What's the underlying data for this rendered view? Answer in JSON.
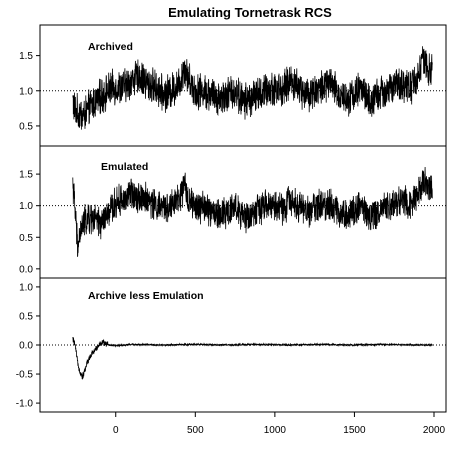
{
  "chart_data": {
    "title": "Emulating Tornetrask RCS",
    "type": "line",
    "x": {
      "range": [
        -300,
        2000
      ],
      "ticks": [
        0,
        500,
        1000,
        1500,
        2000
      ],
      "tick_labels": [
        "0",
        "500",
        "1000",
        "1500",
        "2000"
      ],
      "label": ""
    },
    "grid": false,
    "legend": "none",
    "colors": {
      "series": "#000000",
      "reference_line": "#000000"
    },
    "panels": [
      {
        "label": "Archived",
        "ylim": [
          0.3,
          1.85
        ],
        "yticks": [
          0.5,
          1.0,
          1.5
        ],
        "ytick_labels": [
          "0.5",
          "1.0",
          "1.5"
        ],
        "reference_line": 1.0,
        "anchors": [
          [
            -270,
            0.85
          ],
          [
            -250,
            0.7
          ],
          [
            -200,
            0.65
          ],
          [
            -150,
            0.8
          ],
          [
            -100,
            0.9
          ],
          [
            -50,
            1.0
          ],
          [
            0,
            1.05
          ],
          [
            50,
            1.05
          ],
          [
            100,
            1.15
          ],
          [
            150,
            1.2
          ],
          [
            200,
            1.1
          ],
          [
            250,
            1.05
          ],
          [
            300,
            0.95
          ],
          [
            350,
            1.0
          ],
          [
            400,
            1.1
          ],
          [
            430,
            1.35
          ],
          [
            460,
            1.15
          ],
          [
            500,
            1.0
          ],
          [
            550,
            1.0
          ],
          [
            600,
            0.95
          ],
          [
            650,
            0.9
          ],
          [
            700,
            0.95
          ],
          [
            750,
            1.0
          ],
          [
            800,
            0.85
          ],
          [
            850,
            0.9
          ],
          [
            900,
            0.95
          ],
          [
            950,
            1.0
          ],
          [
            1000,
            1.05
          ],
          [
            1050,
            1.0
          ],
          [
            1100,
            1.15
          ],
          [
            1150,
            1.05
          ],
          [
            1200,
            0.95
          ],
          [
            1250,
            1.0
          ],
          [
            1300,
            1.05
          ],
          [
            1350,
            1.1
          ],
          [
            1400,
            0.95
          ],
          [
            1450,
            0.9
          ],
          [
            1500,
            0.95
          ],
          [
            1550,
            1.05
          ],
          [
            1600,
            0.8
          ],
          [
            1650,
            0.95
          ],
          [
            1700,
            1.0
          ],
          [
            1750,
            1.05
          ],
          [
            1800,
            1.1
          ],
          [
            1850,
            1.05
          ],
          [
            1900,
            1.2
          ],
          [
            1930,
            1.45
          ],
          [
            1960,
            1.3
          ],
          [
            1990,
            1.25
          ]
        ]
      },
      {
        "label": "Emulated",
        "ylim": [
          -0.05,
          1.85
        ],
        "yticks": [
          0.0,
          0.5,
          1.0,
          1.5
        ],
        "ytick_labels": [
          "0.0",
          "0.5",
          "1.0",
          "1.5"
        ],
        "reference_line": 1.0,
        "anchors": [
          [
            -270,
            1.4
          ],
          [
            -255,
            0.9
          ],
          [
            -240,
            0.35
          ],
          [
            -220,
            0.6
          ],
          [
            -200,
            0.75
          ],
          [
            -150,
            0.8
          ],
          [
            -100,
            0.7
          ],
          [
            -50,
            0.85
          ],
          [
            0,
            1.05
          ],
          [
            50,
            1.1
          ],
          [
            100,
            1.2
          ],
          [
            150,
            1.15
          ],
          [
            200,
            1.1
          ],
          [
            250,
            1.0
          ],
          [
            300,
            0.95
          ],
          [
            350,
            1.0
          ],
          [
            400,
            1.1
          ],
          [
            430,
            1.3
          ],
          [
            460,
            1.1
          ],
          [
            500,
            0.95
          ],
          [
            550,
            1.0
          ],
          [
            600,
            0.9
          ],
          [
            650,
            0.85
          ],
          [
            700,
            0.9
          ],
          [
            750,
            1.0
          ],
          [
            800,
            0.8
          ],
          [
            850,
            0.85
          ],
          [
            900,
            0.95
          ],
          [
            950,
            1.0
          ],
          [
            1000,
            1.0
          ],
          [
            1050,
            0.95
          ],
          [
            1100,
            1.1
          ],
          [
            1150,
            1.0
          ],
          [
            1200,
            0.9
          ],
          [
            1250,
            1.0
          ],
          [
            1300,
            1.0
          ],
          [
            1350,
            1.05
          ],
          [
            1400,
            0.9
          ],
          [
            1450,
            0.85
          ],
          [
            1500,
            0.95
          ],
          [
            1550,
            1.0
          ],
          [
            1600,
            0.8
          ],
          [
            1650,
            0.9
          ],
          [
            1700,
            1.0
          ],
          [
            1750,
            1.05
          ],
          [
            1800,
            1.1
          ],
          [
            1850,
            1.05
          ],
          [
            1900,
            1.2
          ],
          [
            1930,
            1.4
          ],
          [
            1960,
            1.3
          ],
          [
            1990,
            1.25
          ]
        ]
      },
      {
        "label": "Archive less Emulation",
        "ylim": [
          -1.05,
          1.05
        ],
        "yticks": [
          -1.0,
          -0.5,
          0.0,
          0.5,
          1.0
        ],
        "ytick_labels": [
          "-1.0",
          "-0.5",
          "0.0",
          "0.5",
          "1.0"
        ],
        "reference_line": 0.0,
        "anchors": [
          [
            -270,
            0.1
          ],
          [
            -260,
            0.05
          ],
          [
            -250,
            -0.1
          ],
          [
            -240,
            -0.3
          ],
          [
            -225,
            -0.45
          ],
          [
            -210,
            -0.55
          ],
          [
            -195,
            -0.45
          ],
          [
            -180,
            -0.3
          ],
          [
            -160,
            -0.2
          ],
          [
            -140,
            -0.12
          ],
          [
            -120,
            -0.05
          ],
          [
            -100,
            0.02
          ],
          [
            -80,
            0.05
          ],
          [
            -60,
            0.02
          ],
          [
            -40,
            0.0
          ],
          [
            0,
            -0.01
          ],
          [
            100,
            0.01
          ],
          [
            300,
            0.0
          ],
          [
            500,
            0.01
          ],
          [
            700,
            0.0
          ],
          [
            900,
            0.01
          ],
          [
            1100,
            0.0
          ],
          [
            1300,
            0.01
          ],
          [
            1500,
            0.0
          ],
          [
            1700,
            0.01
          ],
          [
            1900,
            0.0
          ],
          [
            1990,
            0.0
          ]
        ]
      }
    ]
  }
}
